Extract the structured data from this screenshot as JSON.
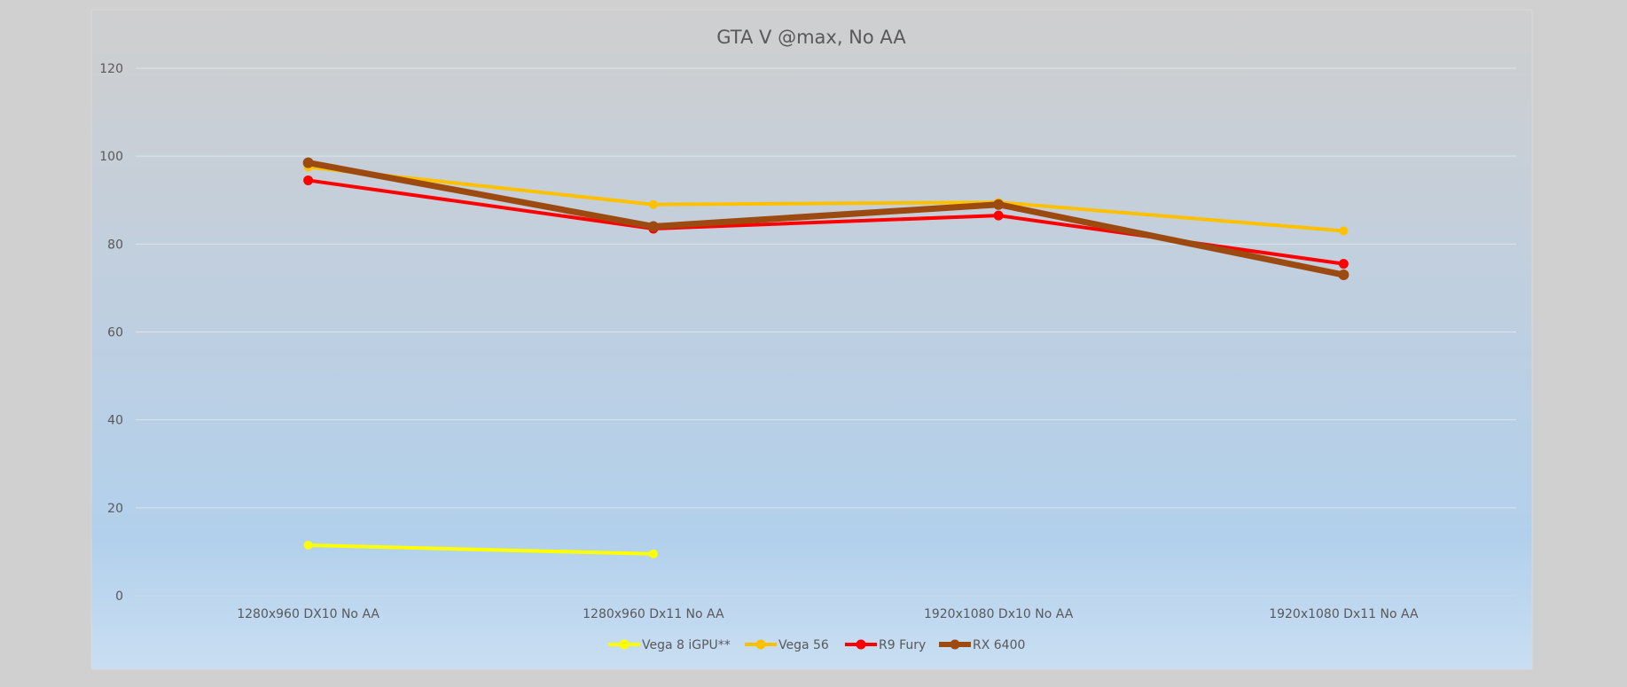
{
  "chart_data": {
    "type": "line",
    "title": "GTA V @max, No AA",
    "xlabel": "",
    "ylabel": "",
    "categories": [
      "1280x960 DX10 No AA",
      "1280x960 Dx11 No AA",
      "1920x1080 Dx10 No AA",
      "1920x1080 Dx11 No AA"
    ],
    "ylim": [
      0,
      120
    ],
    "yticks": [
      0,
      20,
      40,
      60,
      80,
      100,
      120
    ],
    "grid": true,
    "legend_position": "bottom",
    "series": [
      {
        "name": "Vega 8 iGPU**",
        "color": "#ffff00",
        "values": [
          11.5,
          9.5,
          null,
          null
        ]
      },
      {
        "name": "Vega 56",
        "color": "#ffc000",
        "values": [
          97.5,
          89,
          89.5,
          83
        ]
      },
      {
        "name": "R9 Fury",
        "color": "#ff0000",
        "values": [
          94.5,
          83.5,
          86.5,
          75.5
        ]
      },
      {
        "name": "RX 6400",
        "color": "#9c4a10",
        "values": [
          98.5,
          84,
          89,
          73
        ]
      }
    ]
  }
}
